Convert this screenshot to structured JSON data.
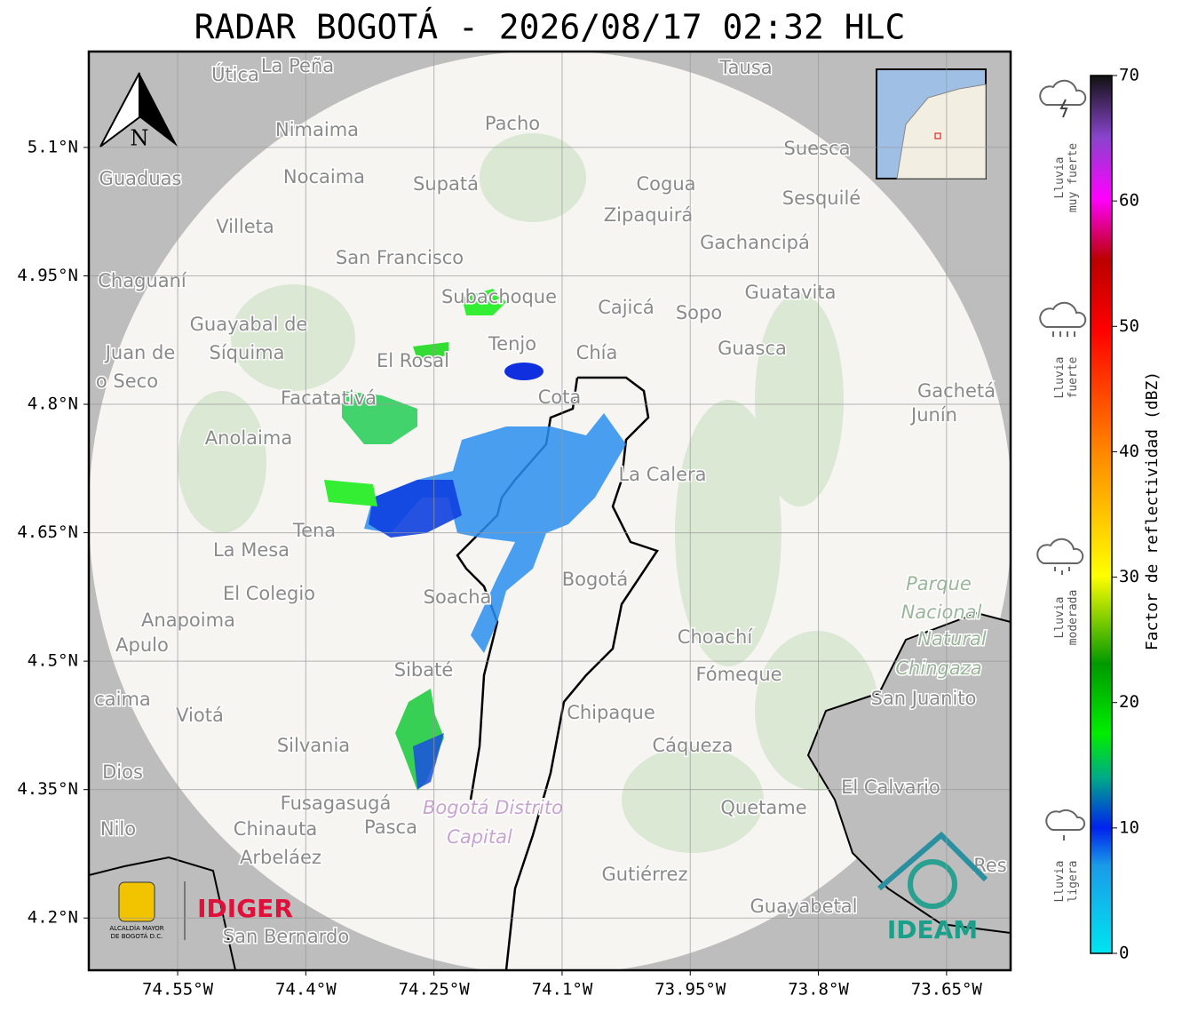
{
  "title": "RADAR BOGOTÁ - 2026/08/17 02:32 HLC",
  "map": {
    "lonlim": [
      -74.654,
      -73.575
    ],
    "latlim": [
      4.139,
      5.212
    ],
    "lon_ticks": [
      {
        "value": -74.55,
        "label": "74.55°W"
      },
      {
        "value": -74.4,
        "label": "74.4°W"
      },
      {
        "value": -74.25,
        "label": "74.25°W"
      },
      {
        "value": -74.1,
        "label": "74.1°W"
      },
      {
        "value": -73.95,
        "label": "73.95°W"
      },
      {
        "value": -73.8,
        "label": "73.8°W"
      },
      {
        "value": -73.65,
        "label": "73.65°W"
      }
    ],
    "lat_ticks": [
      {
        "value": 5.1,
        "label": "5.1°N"
      },
      {
        "value": 4.95,
        "label": "4.95°N"
      },
      {
        "value": 4.8,
        "label": "4.8°N"
      },
      {
        "value": 4.65,
        "label": "4.65°N"
      },
      {
        "value": 4.5,
        "label": "4.5°N"
      },
      {
        "value": 4.35,
        "label": "4.35°N"
      },
      {
        "value": 4.2,
        "label": "4.2°N"
      }
    ],
    "north_label": "N",
    "places": [
      "Útica",
      "La Peña",
      "Tausa",
      "Pacho",
      "Nimaima",
      "Suesca",
      "Guaduas",
      "Nocaima",
      "Supatá",
      "Cogua",
      "Sesquilé",
      "Zipaquirá",
      "Villeta",
      "Gachancipá",
      "San Francisco",
      "Chaguaní",
      "Guatavita",
      "Subachoque",
      "Cajicá",
      "Sopo",
      "Guayabal de",
      "Síquima",
      "Tenjo",
      "Chía",
      "Guasca",
      "Juan de",
      "El Rosal",
      "o Seco",
      "Facatativá",
      "Cota",
      "Gachetá",
      "Junín",
      "Anolaima",
      "La Calera",
      "Tena",
      "La Mesa",
      "Bogotá",
      "El Colegio",
      "Soacha",
      "Anapoima",
      "Apulo",
      "Choachí",
      "Fómeque",
      "Sibaté",
      "San Juanito",
      "caima",
      "Viotá",
      "Chipaque",
      "Silvania",
      "Cáqueza",
      "Dios",
      "El Calvario",
      "Fusagasugá",
      "Quetame",
      "Nilo",
      "Chinauta",
      "Pasca",
      "Arbeláez",
      "Gutiérrez",
      "Res",
      "Guayabetal",
      "San Bernardo"
    ],
    "park": [
      "Parque",
      "Nacional",
      "Natural",
      "Chingaza"
    ],
    "district": [
      "Bogotá Distrito",
      "Capital"
    ]
  },
  "colorbar": {
    "label": "Factor de reflectividad (dBZ)",
    "lim": [
      0,
      70
    ],
    "ticks": [
      0,
      10,
      20,
      30,
      40,
      50,
      60,
      70
    ]
  },
  "legend": [
    [
      "Lluvia",
      "muy fuerte"
    ],
    [
      "Lluvia",
      "fuerte"
    ],
    [
      "Lluvia",
      "moderada"
    ],
    [
      "Lluvia",
      "ligera"
    ]
  ],
  "logos": {
    "alcaldia": [
      "ALCALDÍA MAYOR",
      "DE BOGOTÁ D.C."
    ],
    "idiger": "IDIGER",
    "ideam": "IDEAM"
  }
}
